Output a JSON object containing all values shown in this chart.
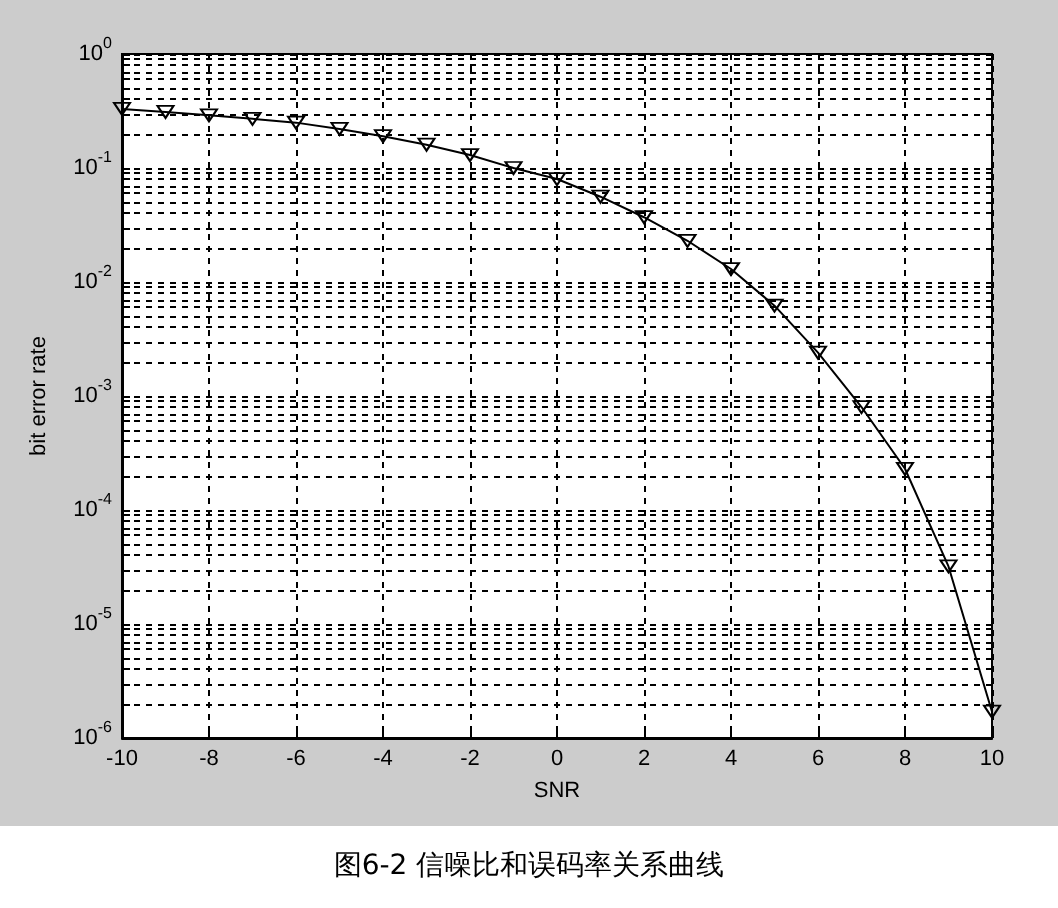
{
  "chart_data": {
    "type": "line",
    "xlabel": "SNR",
    "ylabel": "bit error rate",
    "annotations": [
      "图6-2 信噪比和误码率关系曲线"
    ],
    "x": [
      -10,
      -9,
      -8,
      -7,
      -6,
      -5,
      -4,
      -3,
      -2,
      -1,
      0,
      1,
      2,
      3,
      4,
      5,
      6,
      7,
      8,
      9,
      10
    ],
    "series": [
      {
        "color": "#000000",
        "values": [
          0.33,
          0.31,
          0.29,
          0.27,
          0.25,
          0.22,
          0.19,
          0.16,
          0.13,
          0.1,
          0.08,
          0.056,
          0.037,
          0.023,
          0.013,
          0.0062,
          0.0024,
          0.0008,
          0.00023,
          3.2e-05,
          1.7e-06
        ]
      }
    ],
    "xlim": [
      -10,
      10
    ],
    "xticks": [
      -10,
      -8,
      -6,
      -4,
      -2,
      0,
      2,
      4,
      6,
      8,
      10
    ],
    "ylim": [
      1e-06,
      1
    ],
    "yticks": [
      {
        "value": 1e-06,
        "label": "10$^{-6}$"
      },
      {
        "value": 2e-06,
        "label": null
      },
      {
        "value": 3e-06,
        "label": null
      },
      {
        "value": 4e-06,
        "label": null
      },
      {
        "value": 5e-06,
        "label": null
      },
      {
        "value": 6e-06,
        "label": null
      },
      {
        "value": 7e-06,
        "label": null
      },
      {
        "value": 8e-06,
        "label": null
      },
      {
        "value": 9e-06,
        "label": null
      },
      {
        "value": 1e-05,
        "label": "10$^{-5}$"
      },
      {
        "value": 2e-05,
        "label": null
      },
      {
        "value": 3e-05,
        "label": null
      },
      {
        "value": 4e-05,
        "label": null
      },
      {
        "value": 5e-05,
        "label": null
      },
      {
        "value": 6e-05,
        "label": null
      },
      {
        "value": 7e-05,
        "label": null
      },
      {
        "value": 8e-05,
        "label": null
      },
      {
        "value": 9e-05,
        "label": null
      },
      {
        "value": 0.0001,
        "label": "10$^{-4}$"
      },
      {
        "value": 0.0002,
        "label": null
      },
      {
        "value": 0.0003,
        "label": null
      },
      {
        "value": 0.0004,
        "label": null
      },
      {
        "value": 0.0005,
        "label": null
      },
      {
        "value": 0.0006,
        "label": null
      },
      {
        "value": 0.0007,
        "label": null
      },
      {
        "value": 0.0008,
        "label": null
      },
      {
        "value": 0.0009,
        "label": null
      },
      {
        "value": 0.001,
        "label": "10$^{-3}$"
      },
      {
        "value": 0.002,
        "label": null
      },
      {
        "value": 0.003,
        "label": null
      },
      {
        "value": 0.004,
        "label": null
      },
      {
        "value": 0.005,
        "label": null
      },
      {
        "value": 0.006,
        "label": null
      },
      {
        "value": 0.007,
        "label": null
      },
      {
        "value": 0.008,
        "label": null
      },
      {
        "value": 0.009,
        "label": null
      },
      {
        "value": 0.01,
        "label": "10$^{-2}$"
      },
      {
        "value": 0.02,
        "label": null
      },
      {
        "value": 0.03,
        "label": null
      },
      {
        "value": 0.04,
        "label": null
      },
      {
        "value": 0.05,
        "label": null
      },
      {
        "value": 0.06,
        "label": null
      },
      {
        "value": 0.07,
        "label": null
      },
      {
        "value": 0.08,
        "label": null
      },
      {
        "value": 0.09,
        "label": null
      },
      {
        "value": 0.1,
        "label": "10$^{-1}$"
      },
      {
        "value": 0.2,
        "label": null
      },
      {
        "value": 0.3,
        "label": null
      },
      {
        "value": 0.4,
        "label": null
      },
      {
        "value": 0.5,
        "label": null
      },
      {
        "value": 0.6,
        "label": null
      },
      {
        "value": 0.7,
        "label": null
      },
      {
        "value": 0.8,
        "label": null
      },
      {
        "value": 0.9,
        "label": null
      },
      {
        "value": 1,
        "label": "10$^{0}$"
      }
    ],
    "log": true,
    "grid": true,
    "marker": "triangle",
    "line_style": "solid"
  }
}
